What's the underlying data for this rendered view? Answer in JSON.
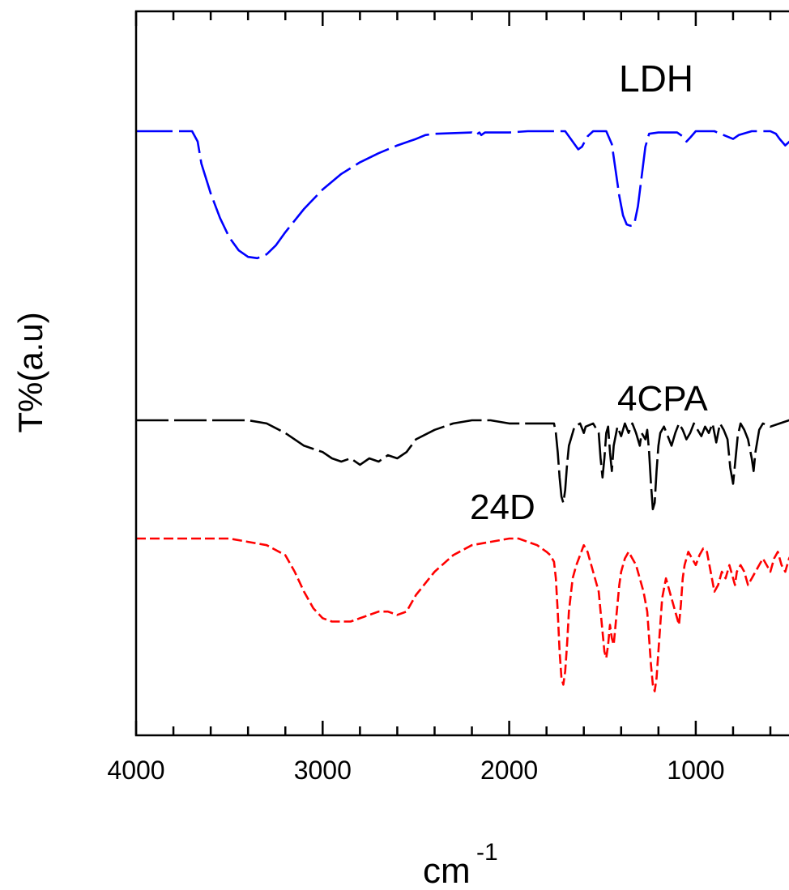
{
  "chart_data": {
    "type": "line",
    "title": "",
    "xlabel_base": "cm",
    "xlabel_sup": "-1",
    "ylabel": "T%(a.u)",
    "xlim": [
      4000,
      400
    ],
    "x_reversed": true,
    "x_ticks_major": [
      4000,
      3000,
      2000,
      1000
    ],
    "x_tick_labels": [
      "4000",
      "3000",
      "2000",
      "1000"
    ],
    "x_ticks_minor": [
      3800,
      3600,
      3400,
      3200,
      2800,
      2600,
      2400,
      2200,
      1800,
      1600,
      1400,
      1200,
      800,
      600
    ],
    "y_tick_labels": [],
    "grid": false,
    "series": [
      {
        "name": "LDH",
        "color": "#0000ff",
        "dash": "dashed",
        "points": [
          [
            4000,
            100
          ],
          [
            3700,
            100
          ],
          [
            3670,
            92
          ],
          [
            3650,
            75
          ],
          [
            3600,
            52
          ],
          [
            3550,
            33
          ],
          [
            3500,
            18
          ],
          [
            3450,
            8
          ],
          [
            3400,
            3
          ],
          [
            3350,
            2
          ],
          [
            3300,
            5
          ],
          [
            3250,
            12
          ],
          [
            3200,
            22
          ],
          [
            3100,
            40
          ],
          [
            3000,
            55
          ],
          [
            2900,
            67
          ],
          [
            2800,
            76
          ],
          [
            2700,
            83
          ],
          [
            2600,
            89
          ],
          [
            2500,
            94
          ],
          [
            2450,
            97
          ],
          [
            2400,
            98
          ],
          [
            2200,
            99
          ],
          [
            2180,
            97
          ],
          [
            2160,
            99
          ],
          [
            2150,
            97
          ],
          [
            2130,
            99
          ],
          [
            2000,
            99
          ],
          [
            1900,
            100
          ],
          [
            1700,
            100
          ],
          [
            1680,
            96
          ],
          [
            1650,
            90
          ],
          [
            1630,
            86
          ],
          [
            1610,
            88
          ],
          [
            1580,
            96
          ],
          [
            1550,
            100
          ],
          [
            1480,
            100
          ],
          [
            1450,
            90
          ],
          [
            1430,
            70
          ],
          [
            1410,
            50
          ],
          [
            1390,
            35
          ],
          [
            1370,
            28
          ],
          [
            1350,
            27
          ],
          [
            1330,
            28
          ],
          [
            1310,
            42
          ],
          [
            1290,
            65
          ],
          [
            1270,
            88
          ],
          [
            1250,
            98
          ],
          [
            1200,
            99
          ],
          [
            1100,
            99
          ],
          [
            1070,
            96
          ],
          [
            1050,
            92
          ],
          [
            1030,
            95
          ],
          [
            1000,
            100
          ],
          [
            900,
            100
          ],
          [
            850,
            97
          ],
          [
            800,
            94
          ],
          [
            770,
            97
          ],
          [
            700,
            100
          ],
          [
            600,
            100
          ],
          [
            570,
            98
          ],
          [
            550,
            94
          ],
          [
            520,
            89
          ],
          [
            490,
            93
          ],
          [
            460,
            99
          ],
          [
            400,
            100
          ]
        ]
      },
      {
        "name": "4CPA",
        "color": "#000000",
        "dash": "dashed",
        "points": [
          [
            4000,
            100
          ],
          [
            3600,
            100
          ],
          [
            3400,
            100
          ],
          [
            3300,
            99
          ],
          [
            3200,
            96
          ],
          [
            3100,
            92
          ],
          [
            3000,
            90
          ],
          [
            2950,
            88
          ],
          [
            2900,
            87
          ],
          [
            2850,
            88
          ],
          [
            2800,
            86
          ],
          [
            2750,
            88
          ],
          [
            2700,
            87
          ],
          [
            2650,
            89
          ],
          [
            2600,
            88
          ],
          [
            2550,
            90
          ],
          [
            2500,
            94
          ],
          [
            2400,
            97
          ],
          [
            2300,
            99
          ],
          [
            2200,
            100
          ],
          [
            2100,
            100
          ],
          [
            2000,
            99
          ],
          [
            1900,
            99
          ],
          [
            1800,
            99
          ],
          [
            1760,
            99
          ],
          [
            1750,
            96
          ],
          [
            1740,
            90
          ],
          [
            1730,
            82
          ],
          [
            1720,
            76
          ],
          [
            1710,
            74
          ],
          [
            1700,
            78
          ],
          [
            1690,
            86
          ],
          [
            1680,
            92
          ],
          [
            1650,
            98
          ],
          [
            1620,
            99
          ],
          [
            1600,
            96
          ],
          [
            1590,
            98
          ],
          [
            1550,
            99
          ],
          [
            1520,
            96
          ],
          [
            1510,
            88
          ],
          [
            1500,
            82
          ],
          [
            1490,
            88
          ],
          [
            1480,
            96
          ],
          [
            1470,
            98
          ],
          [
            1460,
            90
          ],
          [
            1450,
            84
          ],
          [
            1440,
            92
          ],
          [
            1420,
            98
          ],
          [
            1400,
            95
          ],
          [
            1380,
            99
          ],
          [
            1360,
            96
          ],
          [
            1340,
            99
          ],
          [
            1320,
            96
          ],
          [
            1300,
            92
          ],
          [
            1290,
            96
          ],
          [
            1270,
            94
          ],
          [
            1260,
            97
          ],
          [
            1250,
            90
          ],
          [
            1240,
            80
          ],
          [
            1230,
            72
          ],
          [
            1220,
            74
          ],
          [
            1210,
            84
          ],
          [
            1200,
            92
          ],
          [
            1190,
            96
          ],
          [
            1170,
            98
          ],
          [
            1150,
            95
          ],
          [
            1130,
            92
          ],
          [
            1110,
            96
          ],
          [
            1090,
            99
          ],
          [
            1070,
            97
          ],
          [
            1050,
            94
          ],
          [
            1030,
            96
          ],
          [
            1010,
            99
          ],
          [
            990,
            97
          ],
          [
            970,
            95
          ],
          [
            950,
            98
          ],
          [
            930,
            96
          ],
          [
            910,
            99
          ],
          [
            890,
            93
          ],
          [
            870,
            99
          ],
          [
            850,
            97
          ],
          [
            830,
            94
          ],
          [
            815,
            85
          ],
          [
            800,
            80
          ],
          [
            790,
            86
          ],
          [
            775,
            95
          ],
          [
            760,
            99
          ],
          [
            740,
            97
          ],
          [
            720,
            94
          ],
          [
            700,
            88
          ],
          [
            690,
            84
          ],
          [
            680,
            90
          ],
          [
            660,
            97
          ],
          [
            640,
            99
          ],
          [
            600,
            98
          ],
          [
            550,
            99
          ],
          [
            500,
            100
          ],
          [
            400,
            100
          ]
        ]
      },
      {
        "name": "24D",
        "color": "#ff0000",
        "dash": "dashed",
        "points": [
          [
            4000,
            100
          ],
          [
            3800,
            100
          ],
          [
            3600,
            100
          ],
          [
            3500,
            100
          ],
          [
            3400,
            99
          ],
          [
            3300,
            98
          ],
          [
            3200,
            95
          ],
          [
            3150,
            90
          ],
          [
            3100,
            84
          ],
          [
            3050,
            79
          ],
          [
            3000,
            76
          ],
          [
            2950,
            75
          ],
          [
            2900,
            75
          ],
          [
            2850,
            75
          ],
          [
            2800,
            76
          ],
          [
            2750,
            77
          ],
          [
            2700,
            78
          ],
          [
            2650,
            78
          ],
          [
            2600,
            77
          ],
          [
            2550,
            78
          ],
          [
            2500,
            83
          ],
          [
            2400,
            90
          ],
          [
            2300,
            95
          ],
          [
            2200,
            98
          ],
          [
            2100,
            99
          ],
          [
            2000,
            100
          ],
          [
            1950,
            100
          ],
          [
            1900,
            99
          ],
          [
            1850,
            98
          ],
          [
            1800,
            96
          ],
          [
            1780,
            95
          ],
          [
            1760,
            93
          ],
          [
            1750,
            88
          ],
          [
            1740,
            78
          ],
          [
            1730,
            66
          ],
          [
            1720,
            58
          ],
          [
            1710,
            56
          ],
          [
            1700,
            60
          ],
          [
            1690,
            68
          ],
          [
            1680,
            78
          ],
          [
            1660,
            88
          ],
          [
            1640,
            92
          ],
          [
            1620,
            95
          ],
          [
            1600,
            98
          ],
          [
            1580,
            96
          ],
          [
            1560,
            92
          ],
          [
            1540,
            88
          ],
          [
            1520,
            84
          ],
          [
            1510,
            78
          ],
          [
            1500,
            72
          ],
          [
            1490,
            66
          ],
          [
            1480,
            64
          ],
          [
            1470,
            68
          ],
          [
            1460,
            74
          ],
          [
            1450,
            70
          ],
          [
            1440,
            68
          ],
          [
            1430,
            74
          ],
          [
            1420,
            80
          ],
          [
            1410,
            86
          ],
          [
            1400,
            90
          ],
          [
            1380,
            94
          ],
          [
            1360,
            96
          ],
          [
            1340,
            94
          ],
          [
            1320,
            92
          ],
          [
            1300,
            88
          ],
          [
            1280,
            84
          ],
          [
            1260,
            78
          ],
          [
            1250,
            70
          ],
          [
            1240,
            62
          ],
          [
            1230,
            56
          ],
          [
            1220,
            54
          ],
          [
            1210,
            58
          ],
          [
            1200,
            66
          ],
          [
            1190,
            74
          ],
          [
            1180,
            82
          ],
          [
            1160,
            88
          ],
          [
            1140,
            84
          ],
          [
            1120,
            80
          ],
          [
            1100,
            76
          ],
          [
            1090,
            74
          ],
          [
            1080,
            80
          ],
          [
            1070,
            88
          ],
          [
            1060,
            92
          ],
          [
            1040,
            96
          ],
          [
            1020,
            94
          ],
          [
            1000,
            92
          ],
          [
            980,
            95
          ],
          [
            960,
            97
          ],
          [
            940,
            96
          ],
          [
            920,
            90
          ],
          [
            900,
            84
          ],
          [
            880,
            86
          ],
          [
            860,
            90
          ],
          [
            840,
            88
          ],
          [
            820,
            92
          ],
          [
            800,
            88
          ],
          [
            790,
            86
          ],
          [
            780,
            90
          ],
          [
            760,
            92
          ],
          [
            740,
            90
          ],
          [
            720,
            86
          ],
          [
            700,
            88
          ],
          [
            680,
            90
          ],
          [
            660,
            92
          ],
          [
            640,
            94
          ],
          [
            620,
            92
          ],
          [
            600,
            90
          ],
          [
            580,
            94
          ],
          [
            560,
            96
          ],
          [
            540,
            92
          ],
          [
            520,
            90
          ],
          [
            500,
            94
          ],
          [
            480,
            96
          ],
          [
            460,
            94
          ],
          [
            440,
            96
          ],
          [
            420,
            97
          ],
          [
            400,
            98
          ]
        ]
      }
    ],
    "annotations": [
      {
        "text": "LDH"
      },
      {
        "text": "4CPA"
      },
      {
        "text": "24D"
      }
    ]
  }
}
